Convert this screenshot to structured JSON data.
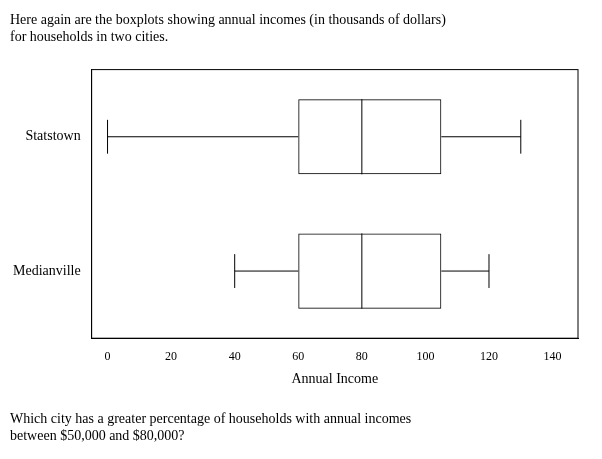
{
  "chart_data": {
    "type": "boxplot",
    "title": "Here again are the boxplots showing annual incomes (in thousands of dollars)\nfor households in two cities.",
    "annotations": [
      "Which city has a greater percentage of households with annual incomes\nbetween $50,000 and $80,000?"
    ],
    "categories": [
      "Statstown",
      "Medianville"
    ],
    "values": [
      {
        "min": 0,
        "q1": 60,
        "median": 80,
        "q3": 105,
        "max": 130
      },
      {
        "min": 40,
        "q1": 60,
        "median": 80,
        "q3": 105,
        "max": 120
      }
    ],
    "orientation": "horizontal",
    "xlim": [
      -5,
      148
    ],
    "xticks": [
      0,
      20,
      40,
      60,
      80,
      100,
      120,
      140
    ],
    "xlabel": "Annual Income",
    "color": "black",
    "grid": false
  }
}
